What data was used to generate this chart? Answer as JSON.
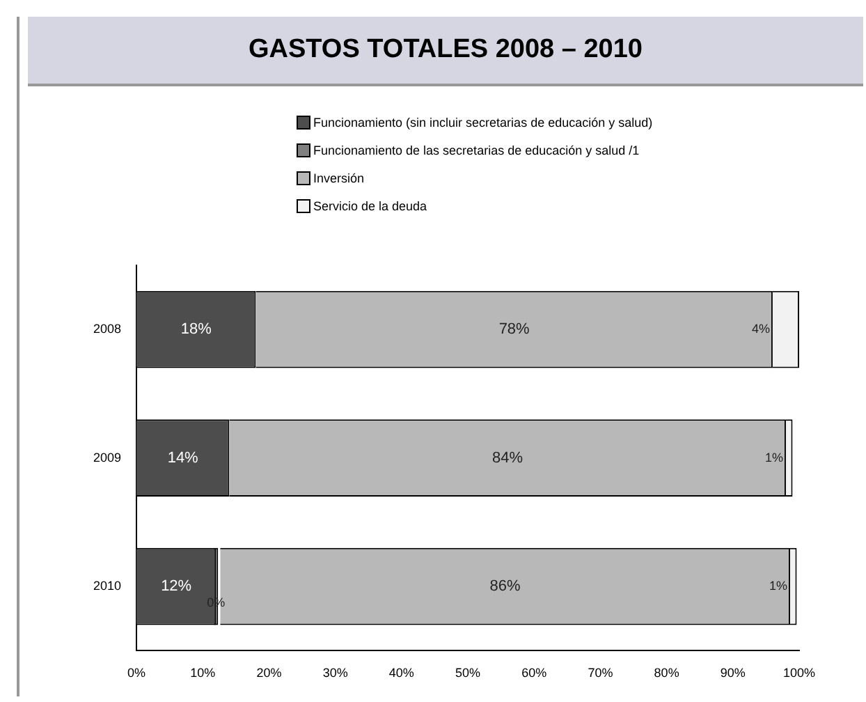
{
  "chart_data": {
    "type": "bar",
    "orientation": "horizontal",
    "stacked": true,
    "title": "GASTOS TOTALES 2008 – 2010",
    "categories": [
      "2008",
      "2009",
      "2010"
    ],
    "series": [
      {
        "name": "Funcionamiento (sin incluir secretarias de educación y salud)",
        "color": "#4d4d4d",
        "values": [
          18,
          14,
          12
        ],
        "value_labels": [
          "18%",
          "14%",
          "12%"
        ]
      },
      {
        "name": "Funcionamiento de las secretarias de educación y salud /1",
        "color": "#808080",
        "values": [
          null,
          null,
          0
        ],
        "value_labels": [
          null,
          null,
          "0%"
        ]
      },
      {
        "name": "Inversión",
        "color": "#b8b8b8",
        "values": [
          78,
          84,
          86
        ],
        "value_labels": [
          "78%",
          "84%",
          "86%"
        ]
      },
      {
        "name": "Servicio de la deuda",
        "color": "#f2f2f2",
        "values": [
          4,
          1,
          1
        ],
        "value_labels": [
          "4%",
          "1%",
          "1%"
        ]
      }
    ],
    "xlim": [
      0,
      100
    ],
    "xticks": [
      {
        "value": 0,
        "label": "0%"
      },
      {
        "value": 10,
        "label": "10%"
      },
      {
        "value": 20,
        "label": "20%"
      },
      {
        "value": 30,
        "label": "30%"
      },
      {
        "value": 40,
        "label": "40%"
      },
      {
        "value": 50,
        "label": "50%"
      },
      {
        "value": 60,
        "label": "60%"
      },
      {
        "value": 70,
        "label": "70%"
      },
      {
        "value": 80,
        "label": "80%"
      },
      {
        "value": 90,
        "label": "90%"
      },
      {
        "value": 100,
        "label": "100%"
      }
    ],
    "grid": false,
    "legend": "top"
  }
}
